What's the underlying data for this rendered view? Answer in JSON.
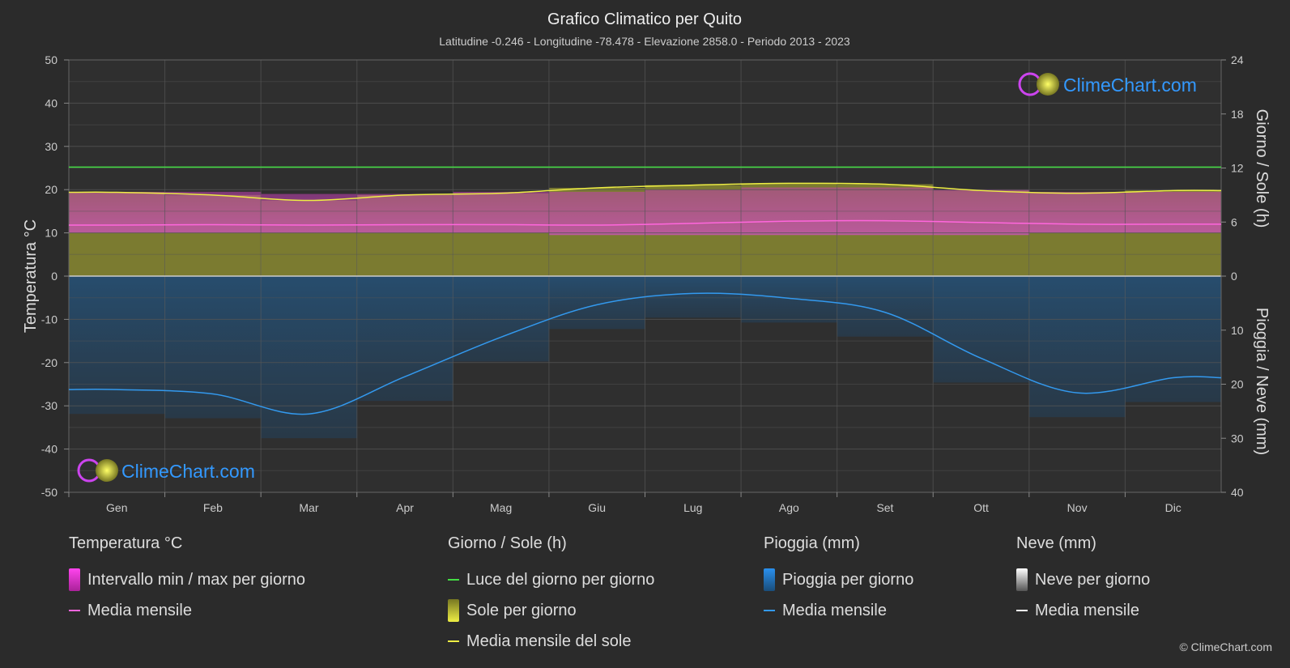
{
  "title": "Grafico Climatico per Quito",
  "subtitle": "Latitudine -0.246 - Longitudine -78.478 - Elevazione 2858.0 - Periodo 2013 - 2023",
  "brand": "ClimeChart.com",
  "copyright": "© ClimeChart.com",
  "colors": {
    "background": "#2b2b2b",
    "temp_range": "#e040c8",
    "temp_mean": "#ff66dd",
    "daylight": "#44dd44",
    "sunshine": "#c8c832",
    "sun_mean": "#eeee44",
    "rain": "#1e78c8",
    "rain_mean": "#3399ee",
    "snow_mean": "#ffffff",
    "brand_text": "#3399ff"
  },
  "chart_data": {
    "type": "area",
    "months": [
      "Gen",
      "Feb",
      "Mar",
      "Apr",
      "Mag",
      "Giu",
      "Lug",
      "Ago",
      "Set",
      "Ott",
      "Nov",
      "Dic"
    ],
    "left_axis": {
      "label": "Temperatura °C",
      "range": [
        -50,
        50
      ],
      "ticks": [
        50,
        40,
        30,
        20,
        10,
        0,
        -10,
        -20,
        -30,
        -40,
        -50
      ]
    },
    "right_axis_top": {
      "label": "Giorno / Sole (h)",
      "range": [
        0,
        24
      ],
      "ticks": [
        24,
        18,
        12,
        6,
        0
      ]
    },
    "right_axis_bottom": {
      "label": "Pioggia / Neve (mm)",
      "range": [
        0,
        40
      ],
      "ticks": [
        0,
        10,
        20,
        30,
        40
      ]
    },
    "grid": true,
    "series": [
      {
        "name": "Intervallo min / max per giorno",
        "kind": "temp_band",
        "min": [
          10,
          10,
          10,
          10,
          10,
          9.5,
          9.5,
          9.5,
          9.5,
          9.5,
          10,
          10
        ],
        "max": [
          19.5,
          19.5,
          19,
          19,
          19.5,
          19.5,
          20,
          20.5,
          20.5,
          20,
          19.5,
          19.5
        ]
      },
      {
        "name": "Media mensile",
        "kind": "temp_mean",
        "values": [
          11.8,
          11.9,
          11.8,
          11.9,
          11.9,
          11.8,
          12.2,
          12.7,
          12.8,
          12.4,
          12.0,
          12.0
        ]
      },
      {
        "name": "Luce del giorno per giorno",
        "kind": "daylight",
        "values": [
          12.1,
          12.1,
          12.1,
          12.1,
          12.1,
          12.1,
          12.1,
          12.1,
          12.1,
          12.1,
          12.1,
          12.1
        ]
      },
      {
        "name": "Sole per giorno",
        "kind": "sunshine",
        "values": [
          9.3,
          9.0,
          8.4,
          9.0,
          9.2,
          9.8,
          10.1,
          10.3,
          10.2,
          9.5,
          9.2,
          9.5
        ]
      },
      {
        "name": "Media mensile del sole",
        "kind": "sun_mean",
        "values": [
          9.3,
          9.0,
          8.4,
          9.0,
          9.2,
          9.8,
          10.1,
          10.3,
          10.2,
          9.5,
          9.2,
          9.5
        ]
      },
      {
        "name": "Pioggia per giorno",
        "kind": "rain",
        "values": [
          21,
          21.8,
          25.5,
          18.6,
          11.3,
          5.3,
          3.2,
          4.1,
          6.7,
          15.2,
          21.6,
          18.8
        ]
      },
      {
        "name": "Media mensile",
        "kind": "rain_mean",
        "values": [
          21,
          21.8,
          25.5,
          18.6,
          11.3,
          5.3,
          3.2,
          4.1,
          6.7,
          15.2,
          21.6,
          18.8
        ]
      }
    ]
  },
  "legend": {
    "temperature": {
      "header": "Temperatura °C",
      "items": [
        "Intervallo min / max per giorno",
        "Media mensile"
      ]
    },
    "sun": {
      "header": "Giorno / Sole (h)",
      "items": [
        "Luce del giorno per giorno",
        "Sole per giorno",
        "Media mensile del sole"
      ]
    },
    "rain": {
      "header": "Pioggia (mm)",
      "items": [
        "Pioggia per giorno",
        "Media mensile"
      ]
    },
    "snow": {
      "header": "Neve (mm)",
      "items": [
        "Neve per giorno",
        "Media mensile"
      ]
    }
  }
}
